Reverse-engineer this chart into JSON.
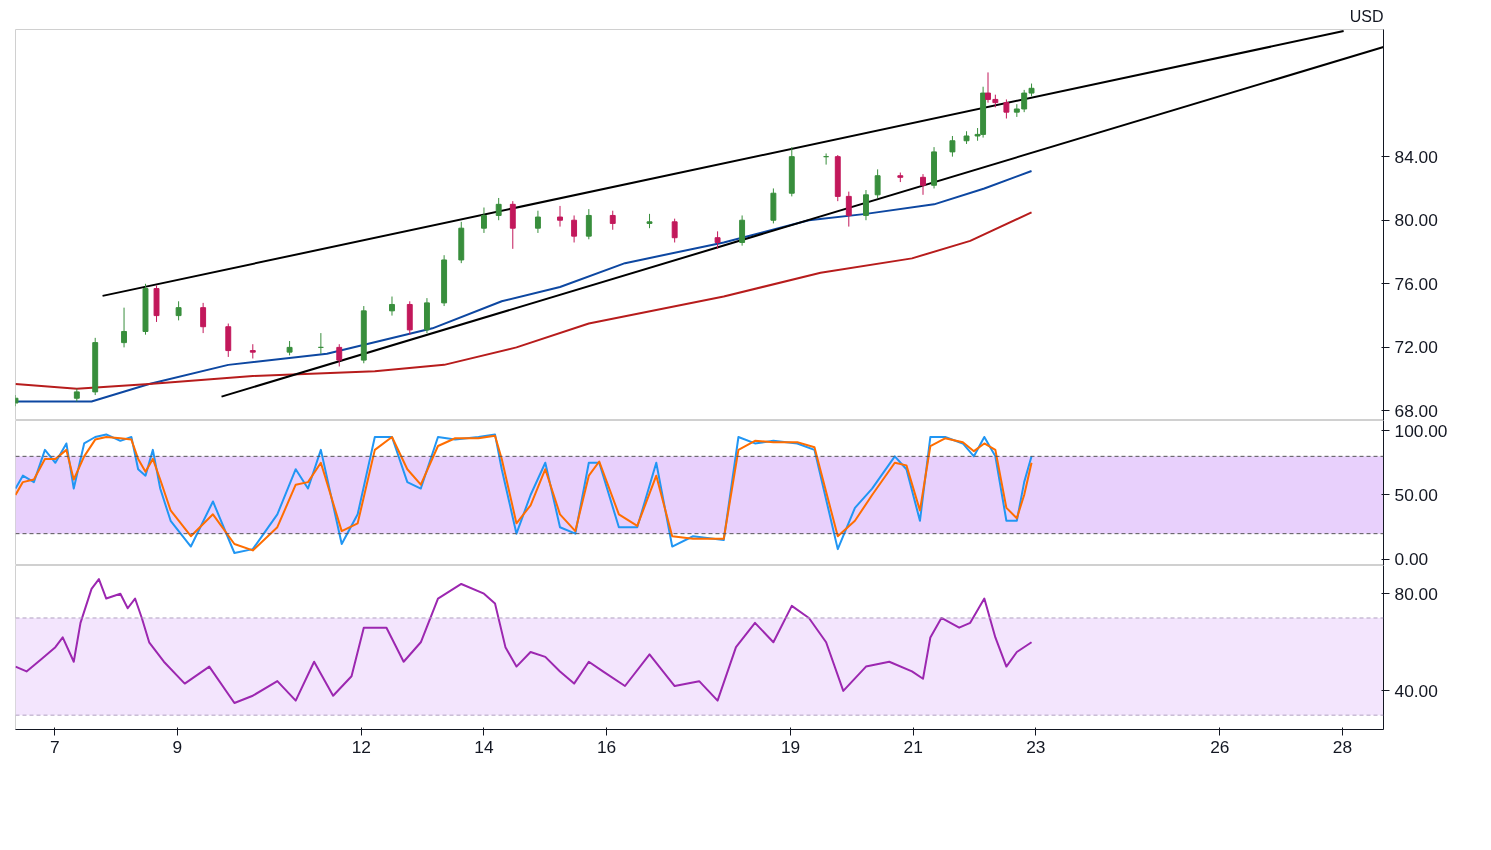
{
  "chart_data": [
    {
      "type": "candlestick",
      "annotations": [
        "USD"
      ],
      "x": [
        6.36,
        7.36,
        7.66,
        8.13,
        8.48,
        8.66,
        9.02,
        9.42,
        9.83,
        10.23,
        10.83,
        11.34,
        11.64,
        12.04,
        12.5,
        12.79,
        13.07,
        13.35,
        13.63,
        14.0,
        14.24,
        14.47,
        14.88,
        15.24,
        15.47,
        15.71,
        16.1,
        16.7,
        17.11,
        17.81,
        18.21,
        18.72,
        19.02,
        19.58,
        19.77,
        19.95,
        20.23,
        20.42,
        20.79,
        21.16,
        21.34,
        21.64,
        21.87,
        22.05,
        22.14,
        22.22,
        22.34,
        22.52,
        22.69,
        22.81,
        22.93
      ],
      "ohlc": [
        [
          68.5,
          69.0,
          68.3,
          68.8
        ],
        [
          68.8,
          69.4,
          68.6,
          69.2
        ],
        [
          69.2,
          72.6,
          69.0,
          72.3
        ],
        [
          72.3,
          74.5,
          72.0,
          73.0
        ],
        [
          73.0,
          76.0,
          72.8,
          75.7
        ],
        [
          75.7,
          75.9,
          73.6,
          74.0
        ],
        [
          74.0,
          74.9,
          73.7,
          74.5
        ],
        [
          74.5,
          74.8,
          72.9,
          73.3
        ],
        [
          73.3,
          73.5,
          71.4,
          71.8
        ],
        [
          71.8,
          72.2,
          71.3,
          71.7
        ],
        [
          71.7,
          72.4,
          71.5,
          72.0
        ],
        [
          72.0,
          72.9,
          71.6,
          72.0
        ],
        [
          72.0,
          72.2,
          70.8,
          71.2
        ],
        [
          71.2,
          74.6,
          71.0,
          74.3
        ],
        [
          74.3,
          75.2,
          74.0,
          74.7
        ],
        [
          74.7,
          74.9,
          72.8,
          73.1
        ],
        [
          73.1,
          75.1,
          72.9,
          74.8
        ],
        [
          74.8,
          77.8,
          74.6,
          77.5
        ],
        [
          77.5,
          79.9,
          77.3,
          79.5
        ],
        [
          79.5,
          80.8,
          79.2,
          80.3
        ],
        [
          80.3,
          81.4,
          80.0,
          81.0
        ],
        [
          81.0,
          81.2,
          78.2,
          79.5
        ],
        [
          79.5,
          80.6,
          79.2,
          80.2
        ],
        [
          80.2,
          80.9,
          79.6,
          80.0
        ],
        [
          80.0,
          80.3,
          78.6,
          79.0
        ],
        [
          79.0,
          80.7,
          78.8,
          80.3
        ],
        [
          80.3,
          80.6,
          79.4,
          79.8
        ],
        [
          79.8,
          80.4,
          79.5,
          79.9
        ],
        [
          79.9,
          80.1,
          78.6,
          78.9
        ],
        [
          78.9,
          79.3,
          78.2,
          78.6
        ],
        [
          78.6,
          80.3,
          78.4,
          80.0
        ],
        [
          80.0,
          82.0,
          79.8,
          81.7
        ],
        [
          81.7,
          84.6,
          81.5,
          84.0
        ],
        [
          84.0,
          84.2,
          83.5,
          84.0
        ],
        [
          84.0,
          84.1,
          81.2,
          81.5
        ],
        [
          81.5,
          81.8,
          79.6,
          80.3
        ],
        [
          80.3,
          81.9,
          80.0,
          81.6
        ],
        [
          81.6,
          83.2,
          81.4,
          82.8
        ],
        [
          82.8,
          83.0,
          82.4,
          82.7
        ],
        [
          82.7,
          82.9,
          81.6,
          82.2
        ],
        [
          82.2,
          84.6,
          82.0,
          84.3
        ],
        [
          84.3,
          85.3,
          84.0,
          85.0
        ],
        [
          85.0,
          85.6,
          84.8,
          85.3
        ],
        [
          85.3,
          85.8,
          85.0,
          85.4
        ],
        [
          85.4,
          88.4,
          85.2,
          88.0
        ],
        [
          88.0,
          89.3,
          87.4,
          87.6
        ],
        [
          87.6,
          87.9,
          87.1,
          87.4
        ],
        [
          87.4,
          87.6,
          86.4,
          86.8
        ],
        [
          86.8,
          87.3,
          86.5,
          87.0
        ],
        [
          87.0,
          88.2,
          86.8,
          88.0
        ],
        [
          88.0,
          88.6,
          87.8,
          88.3
        ]
      ],
      "colors": [
        "#388e3c",
        "#388e3c",
        "#388e3c",
        "#388e3c",
        "#388e3c",
        "#c2185b",
        "#388e3c",
        "#c2185b",
        "#c2185b",
        "#c2185b",
        "#388e3c",
        "#388e3c",
        "#c2185b",
        "#388e3c",
        "#388e3c",
        "#c2185b",
        "#388e3c",
        "#388e3c",
        "#388e3c",
        "#388e3c",
        "#388e3c",
        "#c2185b",
        "#388e3c",
        "#c2185b",
        "#c2185b",
        "#388e3c",
        "#c2185b",
        "#388e3c",
        "#c2185b",
        "#c2185b",
        "#388e3c",
        "#388e3c",
        "#388e3c",
        "#388e3c",
        "#c2185b",
        "#c2185b",
        "#388e3c",
        "#388e3c",
        "#c2185b",
        "#c2185b",
        "#388e3c",
        "#388e3c",
        "#388e3c",
        "#388e3c",
        "#388e3c",
        "#c2185b",
        "#c2185b",
        "#c2185b",
        "#388e3c",
        "#388e3c",
        "#388e3c"
      ],
      "series": [
        {
          "type": "line",
          "color": "#0d47a1",
          "x": [
            6.36,
            7.6,
            8.54,
            9.83,
            11.44,
            13.16,
            14.29,
            15.24,
            16.3,
            17.91,
            19.3,
            20.23,
            21.34,
            22.16,
            22.93
          ],
          "values": [
            68.6,
            68.6,
            69.7,
            70.9,
            71.6,
            73.2,
            74.9,
            75.8,
            77.3,
            78.6,
            80.0,
            80.4,
            81.0,
            82.0,
            83.1
          ]
        },
        {
          "type": "line",
          "color": "#b71c1c",
          "x": [
            6.36,
            7.36,
            8.54,
            10.23,
            12.22,
            13.35,
            14.53,
            15.71,
            17.91,
            19.49,
            20.98,
            21.93,
            22.93
          ],
          "values": [
            69.7,
            69.4,
            69.7,
            70.2,
            70.5,
            70.9,
            72.0,
            73.5,
            75.2,
            76.7,
            77.6,
            78.7,
            80.5
          ]
        },
        {
          "type": "line",
          "color": "#000000",
          "x": [
            7.78,
            28.02
          ],
          "values": [
            75.24,
            91.9
          ]
        },
        {
          "type": "line",
          "color": "#000000",
          "x": [
            9.72,
            28.67
          ],
          "values": [
            68.9,
            90.9
          ]
        }
      ],
      "xlim": [
        6.36,
        28.67
      ],
      "ylim": [
        67.4,
        92.0
      ],
      "xticks": [
        7,
        9,
        12,
        14,
        16,
        19,
        21,
        23,
        26,
        28
      ],
      "yticks": [
        {
          "value": 68,
          "label": "68.00"
        },
        {
          "value": 72,
          "label": "72.00"
        },
        {
          "value": 76,
          "label": "76.00"
        },
        {
          "value": 80,
          "label": "80.00"
        },
        {
          "value": 84,
          "label": "84.00"
        }
      ],
      "tick_labels": "y",
      "grid": false
    },
    {
      "type": "line",
      "series": [
        {
          "color": "#2196f3",
          "x": [
            6.36,
            6.48,
            6.66,
            6.84,
            7.01,
            7.19,
            7.31,
            7.48,
            7.66,
            7.84,
            8.07,
            8.25,
            8.36,
            8.48,
            8.6,
            8.72,
            8.89,
            9.22,
            9.58,
            9.93,
            10.23,
            10.63,
            10.93,
            11.13,
            11.34,
            11.68,
            11.94,
            12.22,
            12.5,
            12.75,
            12.97,
            13.25,
            13.53,
            13.91,
            14.18,
            14.29,
            14.53,
            14.76,
            15.0,
            15.24,
            15.49,
            15.71,
            15.88,
            16.2,
            16.5,
            16.81,
            17.07,
            17.41,
            17.91,
            18.15,
            18.42,
            18.72,
            19.11,
            19.39,
            19.77,
            20.05,
            20.33,
            20.7,
            20.89,
            21.11,
            21.28,
            21.52,
            21.81,
            21.99,
            22.16,
            22.34,
            22.52,
            22.69,
            22.81,
            22.93
          ],
          "values": [
            55,
            65,
            60,
            85,
            75,
            90,
            55,
            90,
            95,
            97,
            92,
            95,
            70,
            65,
            85,
            55,
            30,
            10,
            45,
            5,
            8,
            35,
            70,
            55,
            85,
            12,
            35,
            95,
            95,
            60,
            55,
            95,
            93,
            95,
            97,
            70,
            20,
            50,
            75,
            25,
            20,
            75,
            75,
            25,
            25,
            75,
            10,
            18,
            15,
            95,
            90,
            92,
            90,
            85,
            8,
            40,
            55,
            80,
            70,
            30,
            95,
            95,
            90,
            80,
            95,
            80,
            30,
            30,
            60,
            80
          ]
        },
        {
          "color": "#ff6d00",
          "x": [
            6.36,
            6.48,
            6.66,
            6.84,
            7.01,
            7.19,
            7.31,
            7.48,
            7.66,
            7.84,
            8.07,
            8.25,
            8.36,
            8.48,
            8.6,
            8.72,
            8.89,
            9.22,
            9.58,
            9.93,
            10.23,
            10.63,
            10.93,
            11.13,
            11.34,
            11.68,
            11.94,
            12.22,
            12.5,
            12.75,
            12.97,
            13.25,
            13.53,
            13.91,
            14.18,
            14.29,
            14.53,
            14.76,
            15.0,
            15.24,
            15.49,
            15.71,
            15.88,
            16.2,
            16.5,
            16.81,
            17.07,
            17.41,
            17.91,
            18.15,
            18.42,
            18.72,
            19.11,
            19.39,
            19.77,
            20.05,
            20.33,
            20.7,
            20.89,
            21.11,
            21.28,
            21.52,
            21.81,
            21.99,
            22.16,
            22.34,
            22.52,
            22.69,
            22.81,
            22.93
          ],
          "values": [
            50,
            60,
            62,
            78,
            78,
            85,
            62,
            80,
            93,
            95,
            94,
            93,
            78,
            68,
            78,
            62,
            38,
            18,
            35,
            12,
            7,
            25,
            58,
            60,
            75,
            22,
            28,
            85,
            95,
            70,
            58,
            88,
            94,
            94,
            96,
            78,
            28,
            42,
            70,
            35,
            22,
            65,
            76,
            35,
            26,
            65,
            18,
            16,
            16,
            85,
            92,
            91,
            91,
            87,
            18,
            30,
            50,
            75,
            73,
            38,
            88,
            94,
            91,
            84,
            90,
            85,
            40,
            32,
            50,
            75
          ]
        }
      ],
      "bands": [
        {
          "axis": "y",
          "from": 20,
          "to": 80,
          "color": "#e8d0fc"
        }
      ],
      "ref_lines": [
        {
          "axis": "y",
          "value": 20,
          "color": "#555555",
          "line_style": "dashed"
        },
        {
          "axis": "y",
          "value": 80,
          "color": "#555555",
          "line_style": "dashed"
        }
      ],
      "xlim": [
        6.36,
        28.67
      ],
      "ylim": [
        -4.7,
        107.8
      ],
      "xticks": [
        7,
        9,
        12,
        14,
        16,
        19,
        21,
        23,
        26,
        28
      ],
      "yticks": [
        {
          "value": 0,
          "label": "0.00"
        },
        {
          "value": 50,
          "label": "50.00"
        },
        {
          "value": 100,
          "label": "100.00"
        }
      ],
      "tick_labels": "y",
      "grid": false
    },
    {
      "type": "line",
      "series": [
        {
          "color": "#9c27b0",
          "x": [
            6.36,
            6.54,
            6.78,
            7.01,
            7.13,
            7.31,
            7.42,
            7.6,
            7.72,
            7.84,
            8.07,
            8.19,
            8.31,
            8.42,
            8.54,
            8.78,
            9.12,
            9.52,
            9.93,
            10.23,
            10.63,
            10.93,
            11.23,
            11.54,
            11.84,
            12.04,
            12.41,
            12.69,
            12.97,
            13.25,
            13.63,
            14.0,
            14.18,
            14.35,
            14.53,
            14.76,
            15.0,
            15.24,
            15.47,
            15.71,
            15.94,
            16.3,
            16.7,
            17.11,
            17.51,
            17.81,
            18.11,
            18.42,
            18.72,
            19.02,
            19.3,
            19.58,
            19.86,
            20.23,
            20.61,
            20.98,
            21.16,
            21.28,
            21.46,
            21.75,
            21.93,
            22.16,
            22.34,
            22.52,
            22.69,
            22.93
          ],
          "values": [
            50,
            48,
            53,
            58,
            62,
            52,
            68,
            82,
            86,
            78,
            80,
            74,
            78,
            70,
            60,
            52,
            43,
            50,
            35,
            38,
            44,
            36,
            52,
            38,
            46,
            66,
            66,
            52,
            60,
            78,
            84,
            80,
            76,
            58,
            50,
            56,
            54,
            48,
            43,
            52,
            48,
            42,
            55,
            42,
            44,
            36,
            58,
            68,
            60,
            75,
            70,
            60,
            40,
            50,
            52,
            48,
            45,
            62,
            70,
            66,
            68,
            78,
            62,
            50,
            56,
            60
          ]
        }
      ],
      "bands": [
        {
          "axis": "y",
          "from": 30,
          "to": 70,
          "color": "#f3e5fd"
        }
      ],
      "ref_lines": [
        {
          "axis": "y",
          "value": 30,
          "color": "#b0a0c0",
          "line_style": "dashed"
        },
        {
          "axis": "y",
          "value": 70,
          "color": "#b0a0c0",
          "line_style": "dashed"
        }
      ],
      "xlim": [
        6.36,
        28.67
      ],
      "ylim": [
        24.1,
        91.6
      ],
      "xticks": [
        7,
        9,
        12,
        14,
        16,
        19,
        21,
        23,
        26,
        28
      ],
      "yticks": [
        {
          "value": 40,
          "label": "40.00"
        },
        {
          "value": 80,
          "label": "80.00"
        }
      ],
      "grid": false
    }
  ]
}
